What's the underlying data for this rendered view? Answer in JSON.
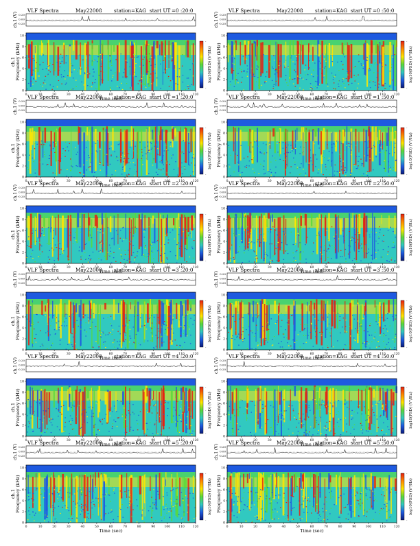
{
  "colors": {
    "spectrogram_low": "#1e5ae0",
    "spectrogram_mid": "#31c9c0",
    "spectrogram_green": "#5ad83a",
    "spectrogram_high": "#ffe600",
    "spectrogram_peak": "#e62010",
    "colorbar_stops": [
      "#e62010",
      "#ff8a00",
      "#ffe600",
      "#5ad83a",
      "#31c9c0",
      "#1e5ae0",
      "#0a1a7a"
    ]
  },
  "chart_data": [
    {
      "type": "heatmap",
      "title": "VLF Spectra",
      "date": "May22008",
      "station": "station=KAG",
      "start_label": "start  UT",
      "start_time": "=0 :20:0",
      "waveform_ylabel": "ch.1 (V)",
      "waveform_ticks": [
        "0.20",
        "0.00",
        "-0.20"
      ],
      "ylabel_prefix": "ch.1",
      "ylabel": "Frequency  (kHz)",
      "yticks": [
        "0",
        "2",
        "4",
        "6",
        "8",
        "10"
      ],
      "xlabel": "Time  (sec)",
      "xticks": [
        "0",
        "10",
        "20",
        "30",
        "40",
        "50",
        "60",
        "70",
        "80",
        "90",
        "100",
        "110",
        "120"
      ],
      "colorbar_label": "log10(PSD) (V²/Hz)",
      "colorbar_ticks": [
        "-",
        "-",
        "-"
      ]
    },
    {
      "type": "heatmap",
      "title": "VLF Spectra",
      "date": "May22008",
      "station": "station=KAG",
      "start_label": "start  UT",
      "start_time": "=0 :50:0",
      "waveform_ylabel": "ch.1 (V)",
      "waveform_ticks": [
        "0.20",
        "0.00",
        "-0.20"
      ],
      "ylabel_prefix": "",
      "ylabel": "Frequency  (kHz)",
      "yticks": [
        "0",
        "2",
        "4",
        "6",
        "8",
        "10"
      ],
      "xlabel": "Time  (sec)",
      "xticks": [
        "0",
        "10",
        "20",
        "30",
        "40",
        "50",
        "60",
        "70",
        "80",
        "90",
        "100",
        "110",
        "120"
      ],
      "colorbar_label": "log10(PSD) (V²/Hz)",
      "colorbar_ticks": [
        "-",
        "-",
        "-"
      ]
    },
    {
      "type": "heatmap",
      "title": "VLF Spectra",
      "date": "May22008",
      "station": "station=KAG",
      "start_label": "start  UT",
      "start_time": "=1 :20:0",
      "waveform_ylabel": "ch.1 (V)",
      "waveform_ticks": [
        "0.20",
        "0.00",
        "-0.20"
      ],
      "ylabel_prefix": "ch.1",
      "ylabel": "Frequency  (kHz)",
      "yticks": [
        "0",
        "2",
        "4",
        "6",
        "8",
        "10"
      ],
      "xlabel": "Time  (sec)",
      "xticks": [
        "0",
        "10",
        "20",
        "30",
        "40",
        "50",
        "60",
        "70",
        "80",
        "90",
        "100",
        "110",
        "120"
      ],
      "colorbar_label": "log10(PSD) (V²/Hz)",
      "colorbar_ticks": [
        "-",
        "-",
        "-"
      ]
    },
    {
      "type": "heatmap",
      "title": "VLF Spectra",
      "date": "May22008",
      "station": "station=KAG",
      "start_label": "start  UT",
      "start_time": "=1 :50:0",
      "waveform_ylabel": "ch.1 (V)",
      "waveform_ticks": [
        "0.20",
        "0.00",
        "-0.20"
      ],
      "ylabel_prefix": "",
      "ylabel": "Frequency  (kHz)",
      "yticks": [
        "0",
        "2",
        "4",
        "6",
        "8",
        "10"
      ],
      "xlabel": "Time  (sec)",
      "xticks": [
        "0",
        "10",
        "20",
        "30",
        "40",
        "50",
        "60",
        "70",
        "80",
        "90",
        "100",
        "110",
        "120"
      ],
      "colorbar_label": "log10(PSD) (V²/Hz)",
      "colorbar_ticks": [
        "-",
        "-",
        "-"
      ]
    },
    {
      "type": "heatmap",
      "title": "VLF Spectra",
      "date": "May22008",
      "station": "station=KAG",
      "start_label": "start  UT",
      "start_time": "=2 :20:0",
      "waveform_ylabel": "ch.1 (V)",
      "waveform_ticks": [
        "0.20",
        "0.00",
        "-0.20"
      ],
      "ylabel_prefix": "ch.1",
      "ylabel": "Frequency  (kHz)",
      "yticks": [
        "0",
        "2",
        "4",
        "6",
        "8",
        "10"
      ],
      "xlabel": "Time  (sec)",
      "xticks": [
        "0",
        "10",
        "20",
        "30",
        "40",
        "50",
        "60",
        "70",
        "80",
        "90",
        "100",
        "110",
        "120"
      ],
      "colorbar_label": "log10(PSD) (V²/Hz)",
      "colorbar_ticks": [
        "-",
        "-",
        "-"
      ]
    },
    {
      "type": "heatmap",
      "title": "VLF Spectra",
      "date": "May22008",
      "station": "station=KAG",
      "start_label": "start  UT",
      "start_time": "=2 :50:0",
      "waveform_ylabel": "ch.1 (V)",
      "waveform_ticks": [
        "0.20",
        "0.00",
        "-0.20"
      ],
      "ylabel_prefix": "",
      "ylabel": "Frequency  (kHz)",
      "yticks": [
        "0",
        "2",
        "4",
        "6",
        "8",
        "10"
      ],
      "xlabel": "Time  (sec)",
      "xticks": [
        "0",
        "10",
        "20",
        "30",
        "40",
        "50",
        "60",
        "70",
        "80",
        "90",
        "100",
        "110",
        "120"
      ],
      "colorbar_label": "log10(PSD) (V²/Hz)",
      "colorbar_ticks": [
        "-",
        "-",
        "-"
      ]
    },
    {
      "type": "heatmap",
      "title": "VLF Spectra",
      "date": "May22008",
      "station": "station=KAG",
      "start_label": "start  UT",
      "start_time": "=3 :20:0",
      "waveform_ylabel": "ch.1 (V)",
      "waveform_ticks": [
        "0.20",
        "0.00",
        "-0.20"
      ],
      "ylabel_prefix": "ch.1",
      "ylabel": "Frequency  (kHz)",
      "yticks": [
        "0",
        "2",
        "4",
        "6",
        "8",
        "10"
      ],
      "xlabel": "Time  (sec)",
      "xticks": [
        "0",
        "10",
        "20",
        "30",
        "40",
        "50",
        "60",
        "70",
        "80",
        "90",
        "100",
        "110",
        "120"
      ],
      "colorbar_label": "log10(PSD) (V²/Hz)",
      "colorbar_ticks": [
        "-",
        "-",
        "-"
      ]
    },
    {
      "type": "heatmap",
      "title": "VLF Spectra",
      "date": "May22008",
      "station": "station=KAG",
      "start_label": "start  UT",
      "start_time": "=3 :50:0",
      "waveform_ylabel": "ch.1 (V)",
      "waveform_ticks": [
        "0.20",
        "0.00",
        "-0.20"
      ],
      "ylabel_prefix": "",
      "ylabel": "Frequency  (kHz)",
      "yticks": [
        "0",
        "2",
        "4",
        "6",
        "8",
        "10"
      ],
      "xlabel": "Time  (sec)",
      "xticks": [
        "0",
        "10",
        "20",
        "30",
        "40",
        "50",
        "60",
        "70",
        "80",
        "90",
        "100",
        "110",
        "120"
      ],
      "colorbar_label": "log10(PSD) (V²/Hz)",
      "colorbar_ticks": [
        "-",
        "-",
        "-"
      ]
    },
    {
      "type": "heatmap",
      "title": "VLF Spectra",
      "date": "May22008",
      "station": "station=KAG",
      "start_label": "start  UT",
      "start_time": "=4 :20:0",
      "waveform_ylabel": "ch.1 (V)",
      "waveform_ticks": [
        "0.20",
        "0.00",
        "-0.20"
      ],
      "ylabel_prefix": "ch.1",
      "ylabel": "Frequency  (kHz)",
      "yticks": [
        "0",
        "2",
        "4",
        "6",
        "8",
        "10"
      ],
      "xlabel": "Time  (sec)",
      "xticks": [
        "0",
        "10",
        "20",
        "30",
        "40",
        "50",
        "60",
        "70",
        "80",
        "90",
        "100",
        "110",
        "120"
      ],
      "colorbar_label": "log10(PSD) (V²/Hz)",
      "colorbar_ticks": [
        "-",
        "-",
        "-"
      ]
    },
    {
      "type": "heatmap",
      "title": "VLF Spectra",
      "date": "May22008",
      "station": "station=KAG",
      "start_label": "start  UT",
      "start_time": "=4 :50:0",
      "waveform_ylabel": "ch.1 (V)",
      "waveform_ticks": [
        "0.20",
        "0.00",
        "-0.20"
      ],
      "ylabel_prefix": "",
      "ylabel": "Frequency  (kHz)",
      "yticks": [
        "0",
        "2",
        "4",
        "6",
        "8",
        "10"
      ],
      "xlabel": "Time  (sec)",
      "xticks": [
        "0",
        "10",
        "20",
        "30",
        "40",
        "50",
        "60",
        "70",
        "80",
        "90",
        "100",
        "110",
        "120"
      ],
      "colorbar_label": "log10(PSD) (V²/Hz)",
      "colorbar_ticks": [
        "-",
        "-",
        "-"
      ]
    },
    {
      "type": "heatmap",
      "title": "VLF Spectra",
      "date": "May22008",
      "station": "station=KAG",
      "start_label": "start  UT",
      "start_time": "=5 :20:0",
      "waveform_ylabel": "ch.1 (V)",
      "waveform_ticks": [
        "0.20",
        "0.00",
        "-0.20"
      ],
      "ylabel_prefix": "ch.1",
      "ylabel": "Frequency  (kHz)",
      "yticks": [
        "0",
        "2",
        "4",
        "6",
        "8",
        "10"
      ],
      "xlabel": "Time  (sec)",
      "xticks": [
        "0",
        "10",
        "20",
        "30",
        "40",
        "50",
        "60",
        "70",
        "80",
        "90",
        "100",
        "110",
        "120"
      ],
      "colorbar_label": "log10(PSD) (V²/Hz)",
      "colorbar_ticks": [
        "-",
        "-",
        "-"
      ]
    },
    {
      "type": "heatmap",
      "title": "VLF Spectra",
      "date": "May22008",
      "station": "station=KAG",
      "start_label": "start  UT",
      "start_time": "=5 :50:0",
      "waveform_ylabel": "ch.1 (V)",
      "waveform_ticks": [
        "0.20",
        "0.00",
        "-0.20"
      ],
      "ylabel_prefix": "",
      "ylabel": "Frequency  (kHz)",
      "yticks": [
        "0",
        "2",
        "4",
        "6",
        "8",
        "10"
      ],
      "xlabel": "Time  (sec)",
      "xticks": [
        "0",
        "10",
        "20",
        "30",
        "40",
        "50",
        "60",
        "70",
        "80",
        "90",
        "100",
        "110",
        "120"
      ],
      "colorbar_label": "log10(PSD) (V²/Hz)",
      "colorbar_ticks": [
        "-",
        "-",
        "-"
      ]
    }
  ]
}
